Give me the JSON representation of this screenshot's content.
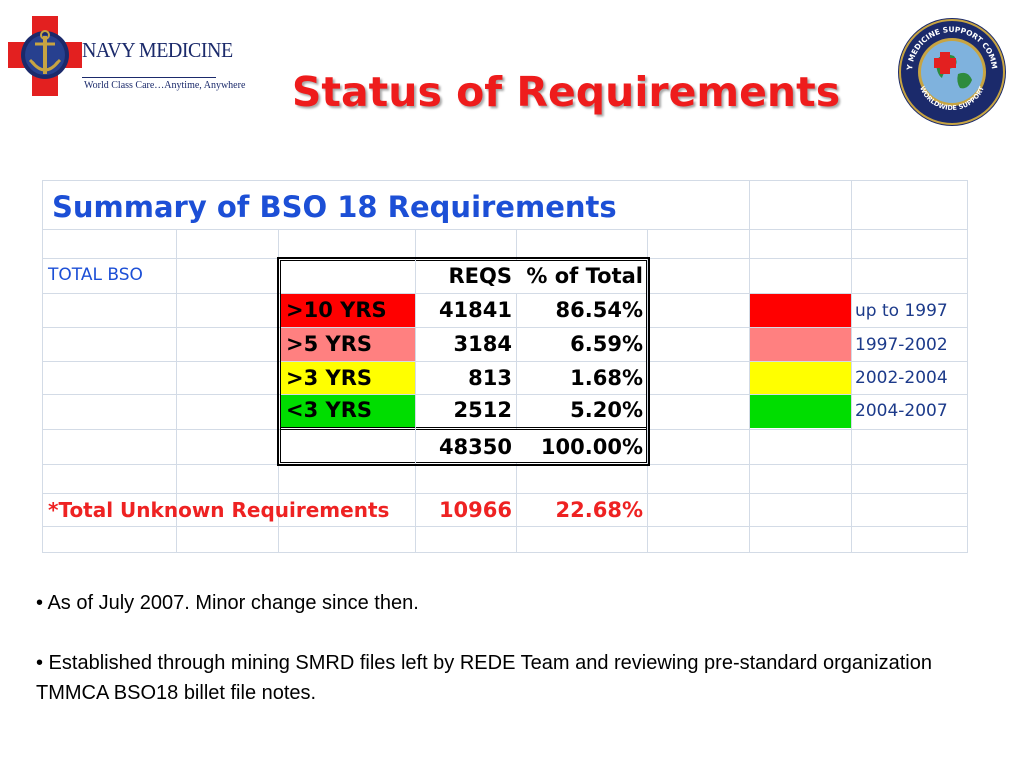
{
  "header": {
    "title": "Status of Requirements",
    "logo_left": {
      "name": "NAVY MEDICINE",
      "tagline": "World Class Care…Anytime, Anywhere"
    },
    "seal": {
      "ring_text_top": "NAVY MEDICINE SUPPORT COMMAND",
      "ring_text_bottom": "WORLDWIDE SUPPORT"
    }
  },
  "sheet": {
    "title": "Summary of BSO 18 Requirements",
    "total_bso_label": "TOTAL BSO",
    "columns": [
      "REQS",
      "% of Total"
    ],
    "rows": [
      {
        "label": ">10 YRS",
        "reqs": "41841",
        "pct": "86.54%",
        "color": "#ff0000"
      },
      {
        "label": ">5 YRS",
        "reqs": "3184",
        "pct": "6.59%",
        "color": "#ff8080"
      },
      {
        "label": ">3 YRS",
        "reqs": "813",
        "pct": "1.68%",
        "color": "#ffff00"
      },
      {
        "label": "<3 YRS",
        "reqs": "2512",
        "pct": "5.20%",
        "color": "#00dd00"
      }
    ],
    "total": {
      "reqs": "48350",
      "pct": "100.00%"
    },
    "unknown": {
      "label": "*Total Unknown Requirements",
      "reqs": "10966",
      "pct": "22.68%"
    },
    "legend": [
      {
        "color": "#ff0000",
        "label": "up to 1997"
      },
      {
        "color": "#ff8080",
        "label": "1997-2002"
      },
      {
        "color": "#ffff00",
        "label": "2002-2004"
      },
      {
        "color": "#00dd00",
        "label": "2004-2007"
      }
    ]
  },
  "notes": [
    "•  As of July 2007.  Minor change since then.",
    "•  Established through mining SMRD files left by REDE Team and reviewing pre-standard organization TMMCA BSO18 billet file notes."
  ]
}
